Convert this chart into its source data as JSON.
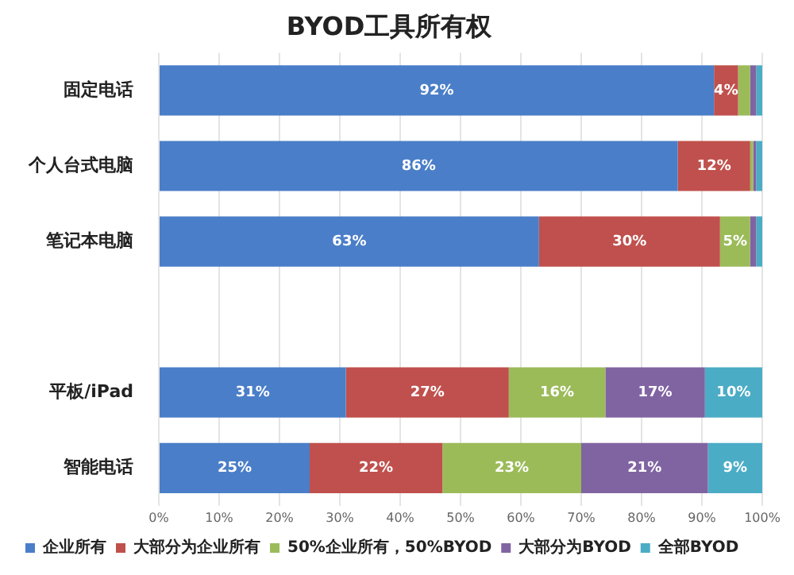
{
  "chart_data": {
    "type": "bar",
    "orientation": "horizontal",
    "stacked": true,
    "title": "BYOD工具所有权",
    "categories": [
      "固定电话",
      "个人台式电脑",
      "笔记本电脑",
      null,
      "平板/iPad",
      "智能电话"
    ],
    "series": [
      {
        "name": "企业所有",
        "color": "#4a7ec8",
        "values": [
          92,
          86,
          63,
          null,
          31,
          25
        ],
        "value_labels": [
          "92%",
          "86%",
          "63%",
          null,
          "31%",
          "25%"
        ]
      },
      {
        "name": "大部分为企业所有",
        "color": "#c0504d",
        "values": [
          4,
          12,
          30,
          null,
          27,
          22
        ],
        "value_labels": [
          "4%",
          "12%",
          "30%",
          null,
          "27%",
          "22%"
        ]
      },
      {
        "name": "50%企业所有，50%BYOD",
        "color": "#9bbb59",
        "values": [
          2,
          0.5,
          5,
          null,
          16,
          23
        ],
        "value_labels": [
          null,
          null,
          "5%",
          null,
          "16%",
          "23%"
        ]
      },
      {
        "name": "大部分为BYOD",
        "color": "#8064a2",
        "values": [
          1,
          0.5,
          1,
          null,
          16.5,
          21
        ],
        "value_labels": [
          null,
          null,
          null,
          null,
          "17%",
          "21%"
        ]
      },
      {
        "name": "全部BYOD",
        "color": "#4bacc6",
        "values": [
          1,
          1,
          1,
          null,
          9.5,
          9
        ],
        "value_labels": [
          null,
          null,
          null,
          null,
          "10%",
          "9%"
        ]
      }
    ],
    "xlim": [
      0,
      100
    ],
    "xticks": [
      {
        "value": 0,
        "label": "0%"
      },
      {
        "value": 10,
        "label": "10%"
      },
      {
        "value": 20,
        "label": "20%"
      },
      {
        "value": 30,
        "label": "30%"
      },
      {
        "value": 40,
        "label": "40%"
      },
      {
        "value": 50,
        "label": "50%"
      },
      {
        "value": 60,
        "label": "60%"
      },
      {
        "value": 70,
        "label": "70%"
      },
      {
        "value": 80,
        "label": "80%"
      },
      {
        "value": 90,
        "label": "90%"
      },
      {
        "value": 100,
        "label": "100%"
      }
    ],
    "grid": "x",
    "legend": "bottom"
  }
}
